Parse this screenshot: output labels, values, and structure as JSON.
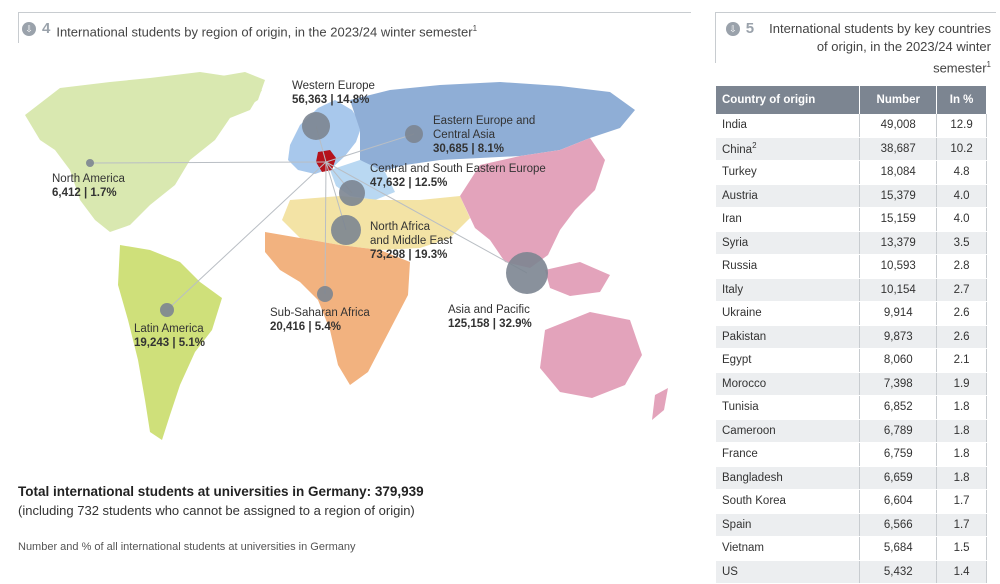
{
  "fig4": {
    "icon": "download-icon",
    "number": "4",
    "title": "International students by region of origin, in the 2023/24 winter semester",
    "sup": "1"
  },
  "fig5": {
    "icon": "download-icon",
    "number": "5",
    "title_line1": "International students by key countries",
    "title_line2": "of origin, in the 2023/24 winter semester",
    "sup": "1"
  },
  "regions": [
    {
      "key": "western-europe",
      "name": "Western Europe",
      "value": "56,363 | 14.8%"
    },
    {
      "key": "eastern-europe",
      "name": "Eastern Europe and",
      "name2": "Central Asia",
      "value": "30,685 | 8.1%"
    },
    {
      "key": "north-america",
      "name": "North America",
      "value": "6,412 | 1.7%"
    },
    {
      "key": "central-south-eastern-europe",
      "name": "Central and South Eastern Europe",
      "value": "47,632 | 12.5%"
    },
    {
      "key": "north-africa",
      "name": "North Africa",
      "name2": "and Middle East",
      "value": "73,298 | 19.3%"
    },
    {
      "key": "asia-pacific",
      "name": "Asia and Pacific",
      "value": "125,158 | 32.9%"
    },
    {
      "key": "sub-saharan-africa",
      "name": "Sub-Saharan Africa",
      "value": "20,416 | 5.4%"
    },
    {
      "key": "latin-america",
      "name": "Latin America",
      "value": "19,243 | 5.1%"
    }
  ],
  "colors": {
    "north_america": "#d9e8b0",
    "latin_america": "#cfe07a",
    "western_europe": "#a8c8ec",
    "eastern_europe": "#8faed6",
    "africa_north": "#f3e3a5",
    "africa_sub": "#f2b27f",
    "asia": "#e3a3bb",
    "germany": "#b5121b",
    "bubble": "#7c8591"
  },
  "total": {
    "line1": "Total international students at universities in Germany: 379,939",
    "line2": "(including 732 students who cannot be assigned to a region of origin)"
  },
  "footnote": "Number and % of all international students at universities in Germany",
  "table": {
    "headers": [
      "Country of origin",
      "Number",
      "In %"
    ],
    "rows": [
      [
        "India",
        "49,008",
        "12.9"
      ],
      [
        "China",
        "38,687",
        "10.2"
      ],
      [
        "Turkey",
        "18,084",
        "4.8"
      ],
      [
        "Austria",
        "15,379",
        "4.0"
      ],
      [
        "Iran",
        "15,159",
        "4.0"
      ],
      [
        "Syria",
        "13,379",
        "3.5"
      ],
      [
        "Russia",
        "10,593",
        "2.8"
      ],
      [
        "Italy",
        "10,154",
        "2.7"
      ],
      [
        "Ukraine",
        "9,914",
        "2.6"
      ],
      [
        "Pakistan",
        "9,873",
        "2.6"
      ],
      [
        "Egypt",
        "8,060",
        "2.1"
      ],
      [
        "Morocco",
        "7,398",
        "1.9"
      ],
      [
        "Tunisia",
        "6,852",
        "1.8"
      ],
      [
        "Cameroon",
        "6,789",
        "1.8"
      ],
      [
        "France",
        "6,759",
        "1.8"
      ],
      [
        "Bangladesh",
        "6,659",
        "1.8"
      ],
      [
        "South Korea",
        "6,604",
        "1.7"
      ],
      [
        "Spain",
        "6,566",
        "1.7"
      ],
      [
        "Vietnam",
        "5,684",
        "1.5"
      ],
      [
        "US",
        "5,432",
        "1.4"
      ]
    ],
    "china_sup": "2"
  }
}
